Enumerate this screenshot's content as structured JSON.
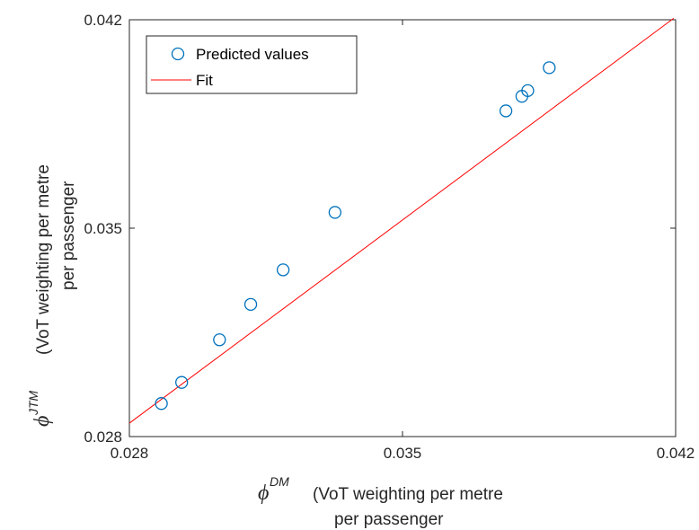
{
  "chart_data": {
    "type": "scatter",
    "xlim": [
      0.028,
      0.042
    ],
    "ylim": [
      0.028,
      0.042
    ],
    "x_ticks": [
      "0.028",
      "0.035",
      "0.042"
    ],
    "y_ticks": [
      "0.028",
      "0.035",
      "0.042"
    ],
    "xlabel": {
      "symbol": "ϕ",
      "sup": "DM",
      "line1": "(VoT weighting per metre",
      "line2": "per passenger"
    },
    "ylabel": {
      "symbol": "ϕ",
      "sup": "JTM",
      "line1": "(VoT weighting per metre",
      "line2": "per passenger"
    },
    "legend_position": "top-left",
    "series": [
      {
        "name": "Predicted values",
        "kind": "markers",
        "marker": "circle",
        "color": "#0072BD",
        "points": [
          {
            "x": 0.02882,
            "y": 0.02911
          },
          {
            "x": 0.02934,
            "y": 0.02982
          },
          {
            "x": 0.03031,
            "y": 0.03125
          },
          {
            "x": 0.03111,
            "y": 0.03244
          },
          {
            "x": 0.03194,
            "y": 0.0336
          },
          {
            "x": 0.03327,
            "y": 0.03553
          },
          {
            "x": 0.03765,
            "y": 0.03894
          },
          {
            "x": 0.03806,
            "y": 0.03943
          },
          {
            "x": 0.03821,
            "y": 0.03962
          },
          {
            "x": 0.03876,
            "y": 0.04039
          }
        ]
      },
      {
        "name": "Fit",
        "kind": "line",
        "color": "#FF0000",
        "points": [
          {
            "x": 0.028,
            "y": 0.02845
          },
          {
            "x": 0.04195,
            "y": 0.04205
          }
        ]
      }
    ]
  }
}
